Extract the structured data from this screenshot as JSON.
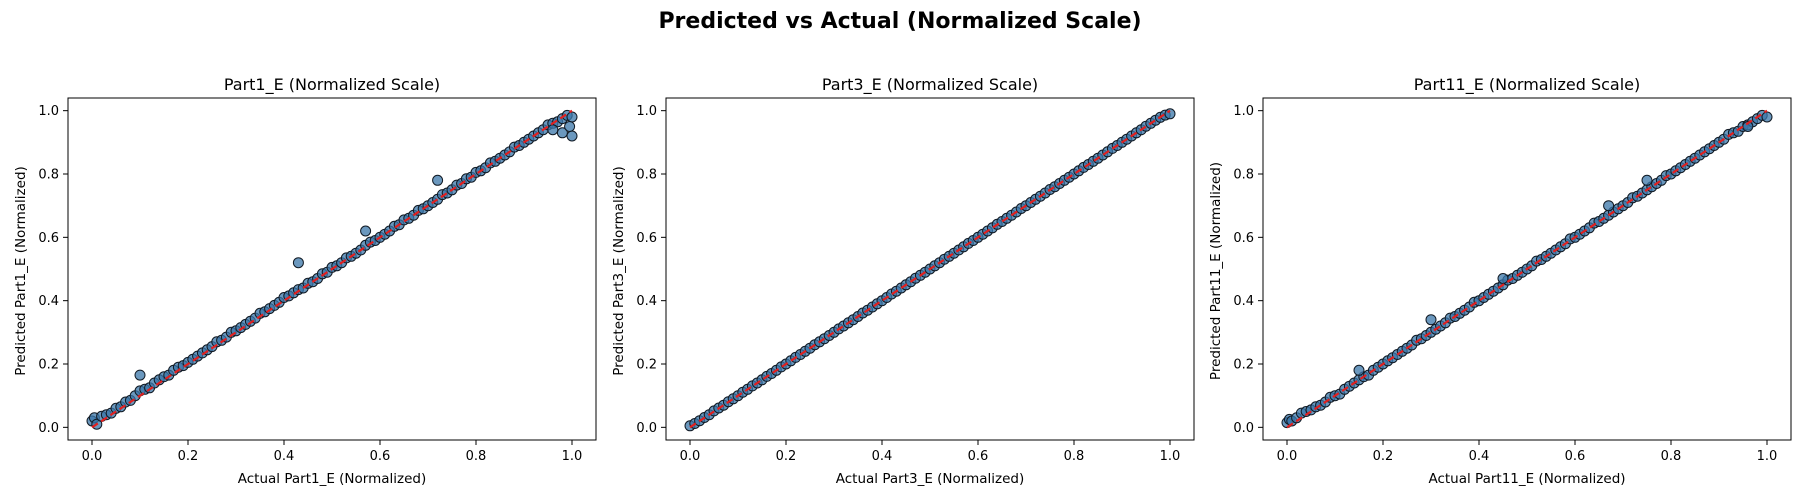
{
  "figure": {
    "suptitle": "Predicted vs Actual (Normalized Scale)"
  },
  "colors": {
    "points": "#3a76a8",
    "point_edge": "#111a24",
    "reference_line": "#e02020"
  },
  "chart_data": [
    {
      "type": "scatter",
      "title": "Part1_E (Normalized Scale)",
      "xlabel": "Actual Part1_E (Normalized)",
      "ylabel": "Predicted Part1_E (Normalized)",
      "xlim": [
        -0.05,
        1.05
      ],
      "ylim": [
        -0.04,
        1.04
      ],
      "xticks": [
        "0.0",
        "0.2",
        "0.4",
        "0.6",
        "0.8",
        "1.0"
      ],
      "yticks": [
        "0.0",
        "0.2",
        "0.4",
        "0.6",
        "0.8",
        "1.0"
      ],
      "grid": false,
      "reference_line": {
        "x": [
          0,
          1
        ],
        "y": [
          0,
          1
        ],
        "style": "dashed"
      },
      "x": [
        0.0,
        0.005,
        0.01,
        0.02,
        0.03,
        0.04,
        0.05,
        0.06,
        0.07,
        0.08,
        0.09,
        0.1,
        0.11,
        0.12,
        0.13,
        0.14,
        0.15,
        0.16,
        0.17,
        0.18,
        0.19,
        0.2,
        0.21,
        0.22,
        0.23,
        0.24,
        0.25,
        0.26,
        0.27,
        0.28,
        0.29,
        0.3,
        0.31,
        0.32,
        0.33,
        0.34,
        0.35,
        0.36,
        0.37,
        0.38,
        0.39,
        0.4,
        0.41,
        0.42,
        0.43,
        0.44,
        0.45,
        0.46,
        0.47,
        0.48,
        0.49,
        0.5,
        0.51,
        0.52,
        0.53,
        0.54,
        0.55,
        0.56,
        0.57,
        0.58,
        0.59,
        0.6,
        0.61,
        0.62,
        0.63,
        0.64,
        0.65,
        0.66,
        0.67,
        0.68,
        0.69,
        0.7,
        0.71,
        0.72,
        0.73,
        0.74,
        0.75,
        0.76,
        0.77,
        0.78,
        0.79,
        0.8,
        0.81,
        0.82,
        0.83,
        0.84,
        0.85,
        0.86,
        0.87,
        0.88,
        0.89,
        0.9,
        0.91,
        0.92,
        0.93,
        0.94,
        0.95,
        0.96,
        0.97,
        0.98,
        0.99,
        1.0,
        0.1,
        0.43,
        0.57,
        0.72,
        0.98,
        1.0,
        0.995,
        0.96
      ],
      "y": [
        0.02,
        0.03,
        0.01,
        0.035,
        0.04,
        0.045,
        0.06,
        0.065,
        0.08,
        0.085,
        0.1,
        0.115,
        0.12,
        0.125,
        0.14,
        0.15,
        0.16,
        0.165,
        0.18,
        0.19,
        0.195,
        0.205,
        0.215,
        0.225,
        0.235,
        0.245,
        0.255,
        0.27,
        0.275,
        0.285,
        0.3,
        0.305,
        0.315,
        0.325,
        0.335,
        0.345,
        0.36,
        0.365,
        0.375,
        0.385,
        0.395,
        0.41,
        0.415,
        0.425,
        0.435,
        0.44,
        0.455,
        0.46,
        0.47,
        0.485,
        0.49,
        0.505,
        0.51,
        0.52,
        0.535,
        0.54,
        0.55,
        0.56,
        0.575,
        0.585,
        0.59,
        0.6,
        0.61,
        0.62,
        0.635,
        0.64,
        0.655,
        0.66,
        0.67,
        0.685,
        0.69,
        0.7,
        0.71,
        0.72,
        0.735,
        0.74,
        0.75,
        0.765,
        0.77,
        0.785,
        0.79,
        0.805,
        0.81,
        0.82,
        0.835,
        0.84,
        0.85,
        0.86,
        0.87,
        0.885,
        0.89,
        0.9,
        0.91,
        0.92,
        0.93,
        0.94,
        0.955,
        0.96,
        0.965,
        0.975,
        0.985,
        0.98,
        0.165,
        0.52,
        0.62,
        0.78,
        0.93,
        0.92,
        0.95,
        0.94
      ]
    },
    {
      "type": "scatter",
      "title": "Part3_E (Normalized Scale)",
      "xlabel": "Actual Part3_E (Normalized)",
      "ylabel": "Predicted Part3_E (Normalized)",
      "xlim": [
        -0.05,
        1.05
      ],
      "ylim": [
        -0.04,
        1.04
      ],
      "xticks": [
        "0.0",
        "0.2",
        "0.4",
        "0.6",
        "0.8",
        "1.0"
      ],
      "yticks": [
        "0.0",
        "0.2",
        "0.4",
        "0.6",
        "0.8",
        "1.0"
      ],
      "grid": false,
      "reference_line": {
        "x": [
          0,
          1
        ],
        "y": [
          0,
          1
        ],
        "style": "dashed"
      },
      "x": [
        0.0,
        0.01,
        0.02,
        0.03,
        0.04,
        0.05,
        0.06,
        0.07,
        0.08,
        0.09,
        0.1,
        0.11,
        0.12,
        0.13,
        0.14,
        0.15,
        0.16,
        0.17,
        0.18,
        0.19,
        0.2,
        0.21,
        0.22,
        0.23,
        0.24,
        0.25,
        0.26,
        0.27,
        0.28,
        0.29,
        0.3,
        0.31,
        0.32,
        0.33,
        0.34,
        0.35,
        0.36,
        0.37,
        0.38,
        0.39,
        0.4,
        0.41,
        0.42,
        0.43,
        0.44,
        0.45,
        0.46,
        0.47,
        0.48,
        0.49,
        0.5,
        0.51,
        0.52,
        0.53,
        0.54,
        0.55,
        0.56,
        0.57,
        0.58,
        0.59,
        0.6,
        0.61,
        0.62,
        0.63,
        0.64,
        0.65,
        0.66,
        0.67,
        0.68,
        0.69,
        0.7,
        0.71,
        0.72,
        0.73,
        0.74,
        0.75,
        0.76,
        0.77,
        0.78,
        0.79,
        0.8,
        0.81,
        0.82,
        0.83,
        0.84,
        0.85,
        0.86,
        0.87,
        0.88,
        0.89,
        0.9,
        0.91,
        0.92,
        0.93,
        0.94,
        0.95,
        0.96,
        0.97,
        0.98,
        0.99,
        1.0
      ],
      "y": [
        0.005,
        0.012,
        0.021,
        0.031,
        0.04,
        0.052,
        0.061,
        0.07,
        0.081,
        0.09,
        0.1,
        0.111,
        0.12,
        0.131,
        0.14,
        0.15,
        0.161,
        0.17,
        0.18,
        0.191,
        0.2,
        0.21,
        0.221,
        0.23,
        0.24,
        0.25,
        0.261,
        0.27,
        0.28,
        0.29,
        0.3,
        0.311,
        0.32,
        0.33,
        0.34,
        0.35,
        0.361,
        0.37,
        0.38,
        0.39,
        0.4,
        0.41,
        0.421,
        0.43,
        0.44,
        0.45,
        0.46,
        0.471,
        0.48,
        0.49,
        0.5,
        0.51,
        0.52,
        0.531,
        0.54,
        0.55,
        0.56,
        0.57,
        0.581,
        0.59,
        0.6,
        0.61,
        0.62,
        0.63,
        0.641,
        0.65,
        0.66,
        0.67,
        0.68,
        0.691,
        0.7,
        0.71,
        0.72,
        0.73,
        0.74,
        0.751,
        0.76,
        0.77,
        0.78,
        0.79,
        0.8,
        0.81,
        0.821,
        0.83,
        0.84,
        0.85,
        0.86,
        0.87,
        0.881,
        0.89,
        0.9,
        0.91,
        0.92,
        0.93,
        0.94,
        0.951,
        0.96,
        0.97,
        0.979,
        0.986,
        0.99
      ]
    },
    {
      "type": "scatter",
      "title": "Part11_E (Normalized Scale)",
      "xlabel": "Actual Part11_E (Normalized)",
      "ylabel": "Predicted Part11_E (Normalized)",
      "xlim": [
        -0.05,
        1.05
      ],
      "ylim": [
        -0.04,
        1.04
      ],
      "xticks": [
        "0.0",
        "0.2",
        "0.4",
        "0.6",
        "0.8",
        "1.0"
      ],
      "yticks": [
        "0.0",
        "0.2",
        "0.4",
        "0.6",
        "0.8",
        "1.0"
      ],
      "grid": false,
      "reference_line": {
        "x": [
          0,
          1
        ],
        "y": [
          0,
          1
        ],
        "style": "dashed"
      },
      "x": [
        0.0,
        0.005,
        0.01,
        0.02,
        0.03,
        0.04,
        0.05,
        0.06,
        0.07,
        0.08,
        0.09,
        0.1,
        0.11,
        0.12,
        0.13,
        0.14,
        0.15,
        0.16,
        0.17,
        0.18,
        0.19,
        0.2,
        0.21,
        0.22,
        0.23,
        0.24,
        0.25,
        0.26,
        0.27,
        0.28,
        0.29,
        0.3,
        0.31,
        0.32,
        0.33,
        0.34,
        0.35,
        0.36,
        0.37,
        0.38,
        0.39,
        0.4,
        0.41,
        0.42,
        0.43,
        0.44,
        0.45,
        0.46,
        0.47,
        0.48,
        0.49,
        0.5,
        0.51,
        0.52,
        0.53,
        0.54,
        0.55,
        0.56,
        0.57,
        0.58,
        0.59,
        0.6,
        0.61,
        0.62,
        0.63,
        0.64,
        0.65,
        0.66,
        0.67,
        0.68,
        0.69,
        0.7,
        0.71,
        0.72,
        0.73,
        0.74,
        0.75,
        0.76,
        0.77,
        0.78,
        0.79,
        0.8,
        0.81,
        0.82,
        0.83,
        0.84,
        0.85,
        0.86,
        0.87,
        0.88,
        0.89,
        0.9,
        0.91,
        0.92,
        0.93,
        0.94,
        0.95,
        0.96,
        0.97,
        0.98,
        0.99,
        1.0,
        0.15,
        0.3,
        0.45,
        0.67,
        0.75,
        0.96
      ],
      "y": [
        0.015,
        0.025,
        0.02,
        0.03,
        0.045,
        0.05,
        0.055,
        0.065,
        0.07,
        0.08,
        0.095,
        0.1,
        0.105,
        0.12,
        0.13,
        0.14,
        0.15,
        0.16,
        0.165,
        0.18,
        0.19,
        0.2,
        0.21,
        0.22,
        0.23,
        0.24,
        0.25,
        0.26,
        0.275,
        0.28,
        0.29,
        0.3,
        0.31,
        0.32,
        0.33,
        0.345,
        0.35,
        0.36,
        0.37,
        0.38,
        0.395,
        0.4,
        0.41,
        0.42,
        0.43,
        0.44,
        0.45,
        0.465,
        0.47,
        0.48,
        0.49,
        0.5,
        0.51,
        0.525,
        0.53,
        0.54,
        0.55,
        0.56,
        0.57,
        0.58,
        0.595,
        0.6,
        0.61,
        0.62,
        0.63,
        0.645,
        0.65,
        0.66,
        0.67,
        0.68,
        0.69,
        0.7,
        0.71,
        0.725,
        0.73,
        0.74,
        0.75,
        0.76,
        0.77,
        0.78,
        0.795,
        0.8,
        0.81,
        0.82,
        0.83,
        0.84,
        0.85,
        0.86,
        0.87,
        0.88,
        0.89,
        0.9,
        0.91,
        0.925,
        0.93,
        0.935,
        0.95,
        0.955,
        0.965,
        0.975,
        0.985,
        0.98,
        0.18,
        0.34,
        0.47,
        0.7,
        0.78,
        0.95
      ]
    }
  ]
}
